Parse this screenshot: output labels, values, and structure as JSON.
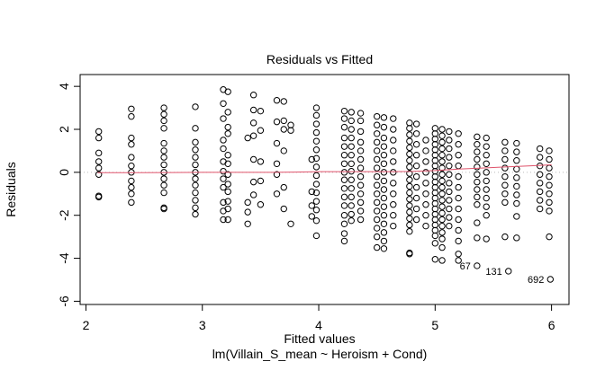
{
  "chart_data": {
    "type": "scatter",
    "title": "Residuals vs Fitted",
    "xlabel": "Fitted values",
    "subtitle": "lm(Villain_S_mean ~ Heroism + Cond)",
    "ylabel": "Residuals",
    "xlim": [
      1.95,
      6.15
    ],
    "ylim": [
      -6.15,
      4.55
    ],
    "xticks": [
      2,
      3,
      4,
      5,
      6
    ],
    "xtick_labels": [
      "2",
      "3",
      "4",
      "5",
      "6"
    ],
    "yticks": [
      4,
      2,
      0,
      -2,
      -4,
      -6
    ],
    "ytick_labels": [
      "4",
      "2",
      "0",
      "-2",
      "-4",
      "-6"
    ],
    "reference_line_y": 0,
    "smoother": {
      "name": "lowess",
      "color": "#DF536B",
      "x": [
        2.1,
        2.4,
        2.7,
        3.0,
        3.2,
        3.4,
        3.6,
        3.8,
        4.0,
        4.2,
        4.4,
        4.6,
        4.8,
        5.0,
        5.2,
        5.4,
        5.6,
        5.8,
        6.0
      ],
      "y": [
        -0.02,
        -0.02,
        -0.01,
        0.0,
        0.0,
        0.0,
        0.0,
        0.01,
        0.03,
        0.03,
        0.03,
        0.03,
        0.04,
        0.08,
        0.15,
        0.2,
        0.25,
        0.3,
        0.35
      ]
    },
    "groups": [
      {
        "x": 2.11,
        "y": [
          1.9,
          1.6,
          0.9,
          0.5,
          0.2,
          -0.1,
          -1.1,
          -1.15
        ]
      },
      {
        "x": 2.39,
        "y": [
          2.95,
          2.6,
          1.6,
          1.3,
          0.7,
          0.3,
          0.0,
          -0.4,
          -0.7,
          -1.0,
          -1.4
        ]
      },
      {
        "x": 2.67,
        "y": [
          3.0,
          2.7,
          2.4,
          2.05,
          1.35,
          1.0,
          0.7,
          0.35,
          0.0,
          -0.3,
          -0.6,
          -0.95,
          -1.65,
          -1.7
        ]
      },
      {
        "x": 2.94,
        "y": [
          3.05,
          2.05,
          1.4,
          1.05,
          0.7,
          0.35,
          0.0,
          -0.3,
          -0.6,
          -0.95,
          -1.3,
          -1.65,
          -1.95
        ]
      },
      {
        "x": 3.18,
        "y": [
          3.85,
          3.2,
          2.5,
          1.5,
          1.1,
          0.5,
          0.05,
          -0.3,
          -0.7,
          -1.4,
          -1.8,
          -2.2
        ]
      },
      {
        "x": 3.22,
        "y": [
          3.75,
          2.8,
          2.1,
          1.8,
          0.8,
          0.4,
          -0.1,
          -0.55,
          -0.9,
          -1.35,
          -1.7,
          -2.2
        ]
      },
      {
        "x": 3.39,
        "y": [
          1.6,
          -1.4,
          -1.85,
          -2.4
        ]
      },
      {
        "x": 3.44,
        "y": [
          3.6,
          2.9,
          2.3,
          1.7,
          0.6,
          -0.45,
          -1.05
        ]
      },
      {
        "x": 3.5,
        "y": [
          2.85,
          1.95,
          0.5,
          -0.4,
          -1.5
        ]
      },
      {
        "x": 3.64,
        "y": [
          3.35,
          2.35,
          1.35,
          0.4,
          -0.1,
          -1.0
        ]
      },
      {
        "x": 3.7,
        "y": [
          3.3,
          2.4,
          2.0,
          1.0,
          -0.7,
          -1.7
        ]
      },
      {
        "x": 3.76,
        "y": [
          2.2,
          1.95,
          -2.4
        ]
      },
      {
        "x": 3.94,
        "y": [
          0.6,
          -0.9,
          -1.55,
          -2.05
        ]
      },
      {
        "x": 3.98,
        "y": [
          3.0,
          2.65,
          2.25,
          1.85,
          1.45,
          1.05,
          0.65,
          0.25,
          -0.15,
          -0.55,
          -0.95,
          -1.35,
          -1.75,
          -2.25,
          -2.95
        ]
      },
      {
        "x": 4.22,
        "y": [
          2.85,
          2.5,
          2.1,
          1.6,
          1.2,
          0.8,
          0.4,
          0.0,
          -0.35,
          -0.75,
          -1.15,
          -1.55,
          -2.0,
          -2.4,
          -2.85,
          -3.2
        ]
      },
      {
        "x": 4.28,
        "y": [
          2.8,
          2.4,
          2.0,
          1.6,
          1.2,
          0.8,
          0.4,
          0.05,
          -0.35,
          -0.75,
          -1.15,
          -1.55,
          -1.95,
          -2.25
        ]
      },
      {
        "x": 4.36,
        "y": [
          2.75,
          2.4,
          1.9,
          1.4,
          1.0,
          0.6,
          0.2,
          -0.2,
          -0.6,
          -1.0,
          -1.4,
          -1.8,
          -2.2
        ]
      },
      {
        "x": 4.5,
        "y": [
          2.6,
          2.2,
          1.8,
          1.4,
          1.0,
          0.6,
          0.2,
          -0.2,
          -0.6,
          -1.0,
          -1.4,
          -1.8,
          -2.2,
          -2.6,
          -3.0,
          -3.5
        ]
      },
      {
        "x": 4.56,
        "y": [
          2.55,
          2.1,
          1.6,
          1.2,
          0.8,
          0.4,
          0.0,
          -0.4,
          -0.8,
          -1.2,
          -1.6,
          -2.0,
          -2.4,
          -2.8,
          -3.2,
          -3.55
        ]
      },
      {
        "x": 4.64,
        "y": [
          2.5,
          2.0,
          1.5,
          1.0,
          0.5,
          0.0,
          -0.5,
          -1.0,
          -1.5,
          -2.0,
          -2.5
        ]
      },
      {
        "x": 4.78,
        "y": [
          2.3,
          2.05,
          1.75,
          1.45,
          1.15,
          0.85,
          0.55,
          0.25,
          -0.05,
          -0.35,
          -0.65,
          -0.95,
          -1.25,
          -1.55,
          -1.85,
          -2.15,
          -2.45,
          -2.75,
          -3.75,
          -3.8
        ]
      },
      {
        "x": 4.84,
        "y": [
          2.25,
          1.8,
          1.3,
          0.8,
          0.3,
          -0.2,
          -0.7,
          -1.2,
          -1.7,
          -2.2
        ]
      },
      {
        "x": 4.92,
        "y": [
          1.5,
          1.0,
          0.5,
          0.0,
          -0.5,
          -1.0,
          -1.5,
          -2.0,
          -2.5
        ]
      },
      {
        "x": 5.0,
        "y": [
          2.05,
          1.8,
          1.55,
          1.3,
          1.05,
          0.8,
          0.55,
          0.3,
          0.05,
          -0.2,
          -0.45,
          -0.7,
          -0.95,
          -1.2,
          -1.45,
          -1.7,
          -1.95,
          -2.2,
          -2.45,
          -2.7,
          -2.95,
          -3.3,
          -4.05
        ]
      },
      {
        "x": 5.06,
        "y": [
          2.0,
          1.7,
          1.4,
          1.1,
          0.8,
          0.5,
          0.2,
          -0.1,
          -0.4,
          -0.7,
          -1.0,
          -1.3,
          -1.6,
          -1.9,
          -2.2,
          -2.5,
          -2.8,
          -3.1,
          -3.5,
          -4.1
        ]
      },
      {
        "x": 5.12,
        "y": [
          1.9,
          1.5,
          1.1,
          0.7,
          0.3,
          -0.1,
          -0.5,
          -0.9,
          -1.3,
          -1.7,
          -2.1,
          -2.5
        ]
      },
      {
        "x": 5.2,
        "y": [
          1.8,
          1.3,
          0.8,
          0.3,
          -0.2,
          -0.7,
          -1.2,
          -1.7,
          -2.2,
          -2.7,
          -3.2,
          -3.8,
          -4.1
        ]
      },
      {
        "x": 5.36,
        "y": [
          1.65,
          1.3,
          0.95,
          0.6,
          0.25,
          -0.1,
          -0.45,
          -0.8,
          -1.15,
          -1.5,
          -2.35,
          -3.05
        ]
      },
      {
        "x": 5.44,
        "y": [
          1.6,
          1.2,
          0.8,
          0.4,
          0.0,
          -0.4,
          -0.8,
          -1.2,
          -1.6,
          -2.0,
          -3.1
        ]
      },
      {
        "x": 5.6,
        "y": [
          1.4,
          1.0,
          0.6,
          0.2,
          -0.2,
          -0.6,
          -1.0,
          -1.4,
          -3.0
        ]
      },
      {
        "x": 5.7,
        "y": [
          1.35,
          0.95,
          0.55,
          0.15,
          -0.25,
          -0.65,
          -1.05,
          -1.45,
          -2.05,
          -3.05
        ]
      },
      {
        "x": 5.9,
        "y": [
          1.1,
          0.7,
          0.3,
          -0.1,
          -0.5,
          -0.9,
          -1.3,
          -1.7
        ]
      },
      {
        "x": 5.98,
        "y": [
          1.0,
          0.6,
          0.2,
          -0.2,
          -0.6,
          -1.0,
          -1.4,
          -1.8,
          -3.0
        ]
      }
    ],
    "labeled_points": [
      {
        "label": "67",
        "x": 5.36,
        "y": -4.35
      },
      {
        "label": "131",
        "x": 5.63,
        "y": -4.6
      },
      {
        "label": "692",
        "x": 5.99,
        "y": -4.98
      }
    ]
  }
}
